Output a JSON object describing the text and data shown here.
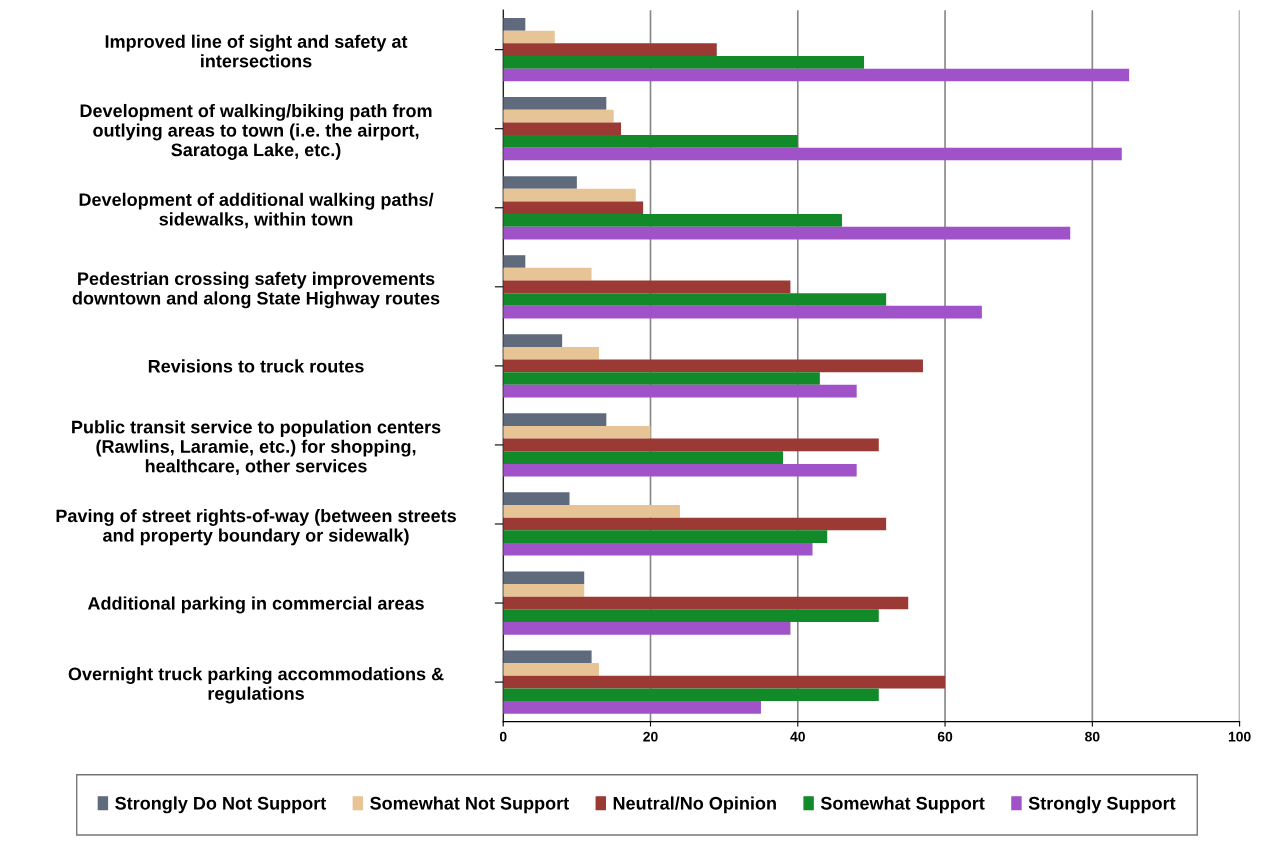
{
  "chart_data": {
    "type": "bar",
    "orientation": "horizontal",
    "categories": [
      "Improved line of sight and safety at\nintersections",
      "Development of walking/biking path from\noutlying areas to town (i.e. the airport,\nSaratoga Lake, etc.)",
      "Development of additional walking paths/\nsidewalks, within town",
      "Pedestrian crossing safety improvements\ndowntown and along State Highway routes",
      "Revisions to truck routes",
      "Public transit service to population centers\n(Rawlins, Laramie, etc.) for shopping,\nhealthcare, other services",
      "Paving of street rights-of-way (between streets\nand property boundary or sidewalk)",
      "Additional parking in commercial areas",
      "Overnight truck parking accommodations &\nregulations"
    ],
    "series": [
      {
        "name": "Strongly Do Not Support",
        "color": "#5f6b7d",
        "values": [
          3,
          14,
          10,
          3,
          8,
          14,
          9,
          11,
          12
        ]
      },
      {
        "name": "Somewhat Not Support",
        "color": "#e6c495",
        "values": [
          7,
          15,
          18,
          12,
          13,
          20,
          24,
          11,
          13
        ]
      },
      {
        "name": "Neutral/No Opinion",
        "color": "#9b3a34",
        "values": [
          29,
          16,
          19,
          39,
          57,
          51,
          52,
          55,
          60
        ]
      },
      {
        "name": "Somewhat Support",
        "color": "#138a2a",
        "values": [
          49,
          40,
          46,
          52,
          43,
          38,
          44,
          51,
          51
        ]
      },
      {
        "name": "Strongly Support",
        "color": "#a052c8",
        "values": [
          85,
          84,
          77,
          65,
          48,
          48,
          42,
          39,
          35
        ]
      }
    ],
    "xlim": [
      0,
      100
    ],
    "xticks": [
      0,
      20,
      40,
      60,
      80,
      100
    ],
    "grid": "x",
    "legend": "bottom"
  }
}
